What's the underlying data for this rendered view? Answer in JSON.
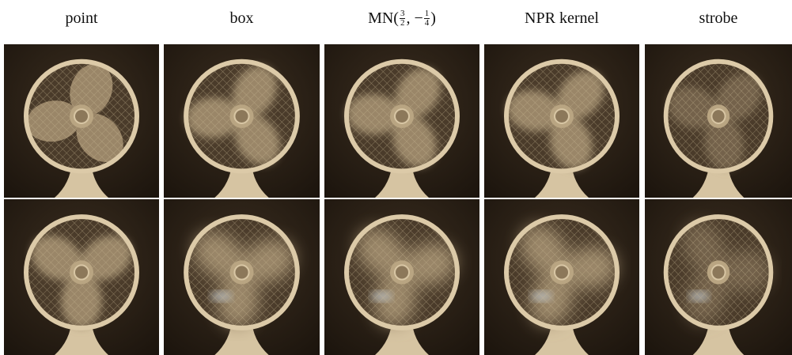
{
  "columns": [
    {
      "label": "point"
    },
    {
      "label": "box"
    },
    {
      "label_parts": [
        "MN(",
        "3",
        "2",
        ", −",
        "1",
        "4",
        ")"
      ]
    },
    {
      "label": "NPR kernel"
    },
    {
      "label": "strobe"
    }
  ]
}
